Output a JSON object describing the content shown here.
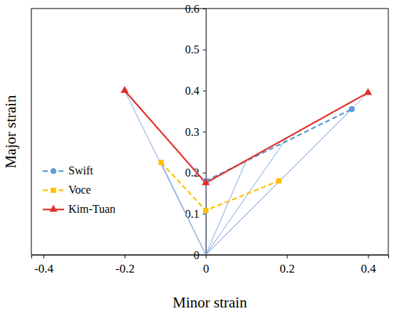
{
  "chart_data": {
    "type": "line",
    "x_label": "Minor strain",
    "y_label": "Major strain",
    "xlim": [
      -0.43,
      0.45
    ],
    "xticks": [
      -0.4,
      -0.2,
      0,
      0.2,
      0.4
    ],
    "ylim": [
      0,
      0.6
    ],
    "yticks": [
      0,
      0.1,
      0.2,
      0.3,
      0.4,
      0.5,
      0.6
    ],
    "legend": "left",
    "series": [
      {
        "name": "Swift",
        "color": "#5b9bd5",
        "marker": "circle",
        "line_style": "dashed",
        "x": [
          0,
          0.36
        ],
        "values": [
          0.18,
          0.355
        ]
      },
      {
        "name": "Voce",
        "color": "#ffc000",
        "marker": "square",
        "line_style": "dashed",
        "x": [
          -0.11,
          0,
          0.18
        ],
        "values": [
          0.225,
          0.108,
          0.18
        ]
      },
      {
        "name": "Kim-Tuan",
        "color": "#e0302b",
        "marker": "triangle",
        "line_style": "solid",
        "x": [
          -0.2,
          0,
          0.4
        ],
        "values": [
          0.4,
          0.175,
          0.395
        ]
      }
    ],
    "strain_paths": {
      "color": "#7fa8dc",
      "x0": 0,
      "y0": 0,
      "x": [
        -0.2,
        -0.11,
        0,
        0.1,
        0.2,
        0.36,
        0.4
      ],
      "y": [
        0.4,
        0.225,
        0.175,
        0.23,
        0.285,
        0.355,
        0.395
      ]
    }
  }
}
